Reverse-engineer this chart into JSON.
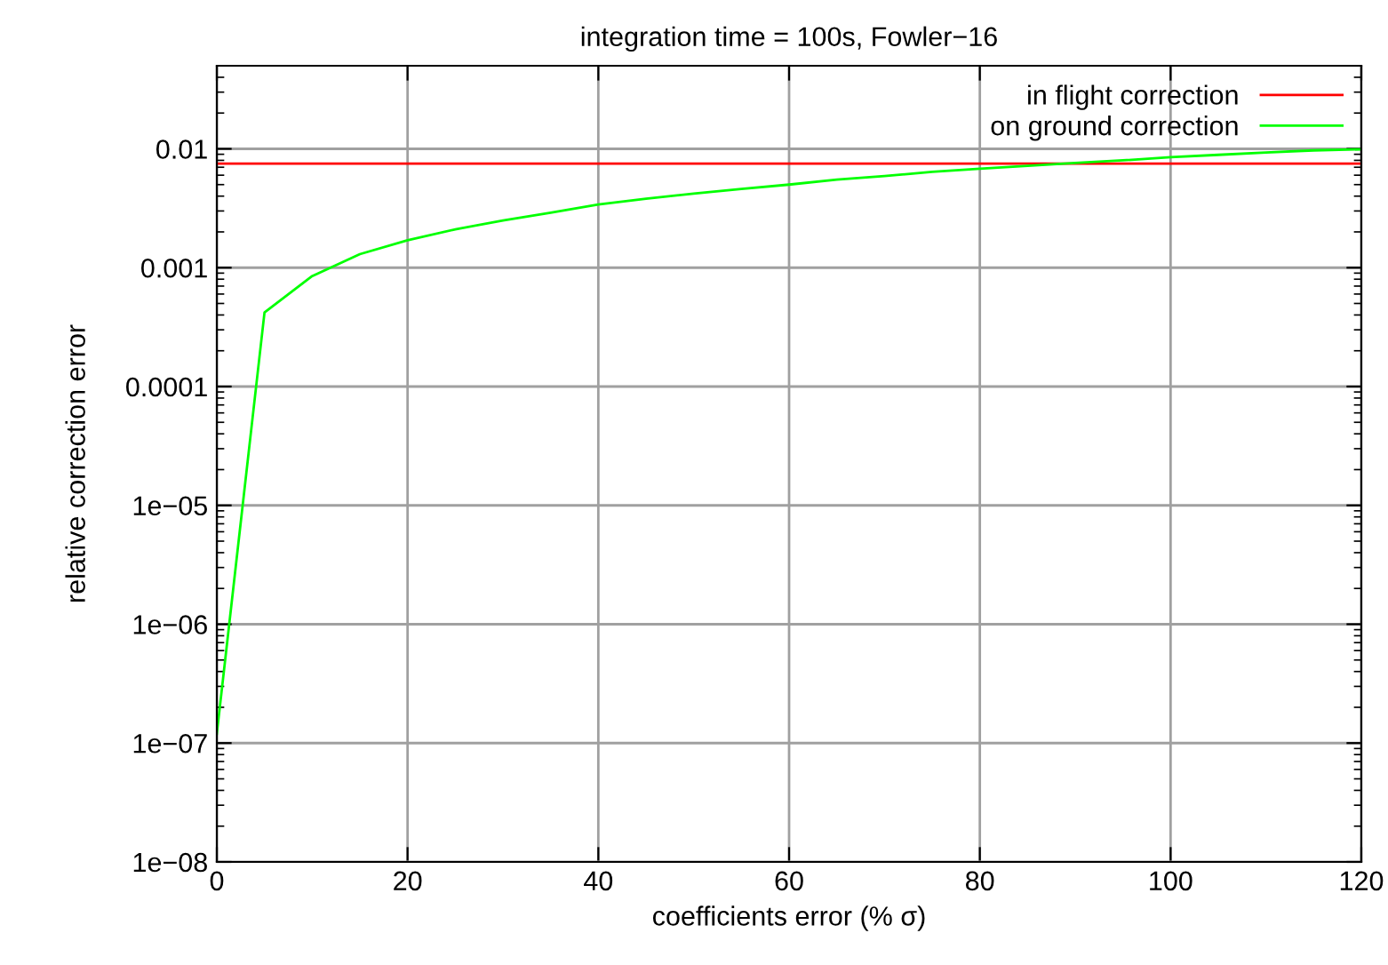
{
  "chart_data": {
    "type": "line",
    "title": "integration time = 100s, Fowler−16",
    "xlabel": "coefficients error (% σ)",
    "ylabel": "relative correction error",
    "log": "y",
    "grid": true,
    "legend": "top right",
    "xlim": [
      0,
      120
    ],
    "xticks": [
      0,
      20,
      40,
      60,
      80,
      100,
      120
    ],
    "ylim": [
      1e-08,
      0.05
    ],
    "yticks": [
      {
        "value": 1e-08,
        "label": "1e−08"
      },
      {
        "value": 1e-07,
        "label": "1e−07"
      },
      {
        "value": 1e-06,
        "label": "1e−06"
      },
      {
        "value": 1e-05,
        "label": "1e−05"
      },
      {
        "value": 0.0001,
        "label": "0.0001"
      },
      {
        "value": 0.001,
        "label": "0.001"
      },
      {
        "value": 0.01,
        "label": "0.01"
      }
    ],
    "series": [
      {
        "name": "in flight correction",
        "color": "#ff0000",
        "x": [
          0,
          120
        ],
        "values": [
          0.0075,
          0.0075
        ]
      },
      {
        "name": "on ground correction",
        "color": "#00ff00",
        "x": [
          0,
          5,
          10,
          15,
          20,
          25,
          30,
          35,
          40,
          45,
          50,
          55,
          60,
          65,
          70,
          75,
          80,
          85,
          90,
          95,
          100,
          105,
          110,
          115,
          120
        ],
        "values": [
          1.2e-07,
          0.00042,
          0.00085,
          0.0013,
          0.0017,
          0.0021,
          0.0025,
          0.0029,
          0.0034,
          0.0038,
          0.0042,
          0.0046,
          0.005,
          0.0055,
          0.0059,
          0.0064,
          0.0068,
          0.0072,
          0.0076,
          0.008,
          0.0085,
          0.0089,
          0.0093,
          0.0097,
          0.0099
        ]
      }
    ]
  }
}
